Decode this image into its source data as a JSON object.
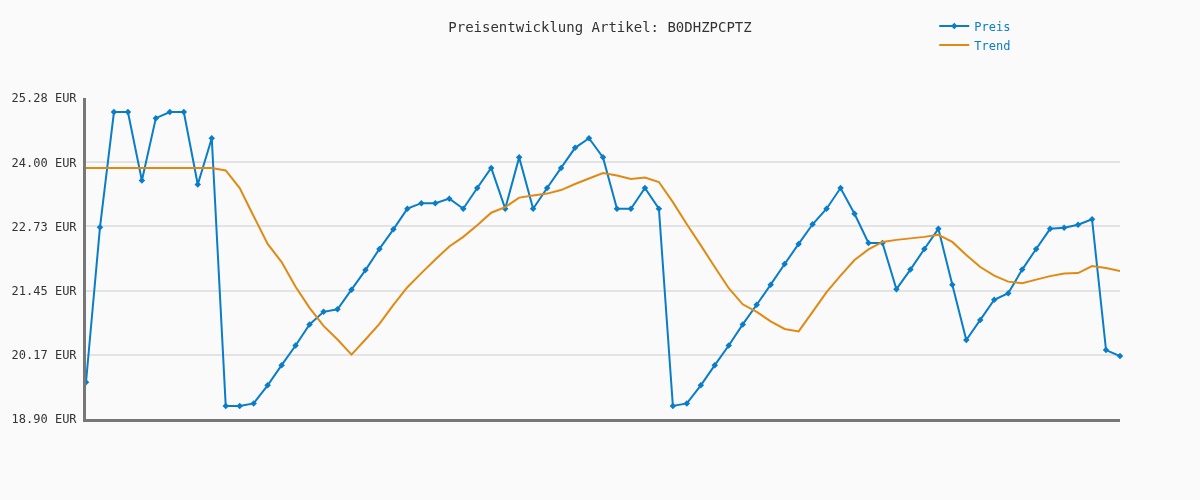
{
  "chart_data": {
    "type": "line",
    "title": "Preisentwicklung Artikel: B0DHZPCPTZ",
    "categories": [
      null,
      null,
      null,
      null,
      null,
      null,
      null,
      null,
      null,
      null,
      null,
      null,
      null,
      null,
      null,
      null,
      null,
      null,
      null,
      null,
      null,
      null,
      null,
      null,
      null,
      null,
      null,
      null,
      null,
      null,
      null,
      null,
      null,
      null,
      null,
      null,
      null,
      null,
      null,
      null,
      null,
      null,
      null,
      null,
      null,
      null,
      null,
      null,
      null,
      null,
      null,
      null,
      null,
      null,
      null,
      null,
      null,
      null,
      null,
      null,
      null,
      null,
      null,
      null,
      null,
      null,
      null,
      null,
      null,
      null,
      null,
      null,
      null,
      null,
      null
    ],
    "series": [
      {
        "name": "Preis",
        "color": "#0a7dc8",
        "marker": "diamond",
        "values": [
          19.63,
          22.71,
          25.0,
          25.0,
          23.64,
          24.88,
          25.0,
          25.0,
          23.56,
          24.48,
          19.16,
          19.16,
          19.21,
          19.57,
          19.97,
          20.36,
          20.78,
          21.03,
          21.08,
          21.47,
          21.86,
          22.28,
          22.67,
          23.08,
          23.19,
          23.19,
          23.28,
          23.08,
          23.49,
          23.89,
          23.08,
          24.1,
          23.08,
          23.49,
          23.89,
          24.29,
          24.48,
          24.1,
          23.08,
          23.08,
          23.49,
          23.08,
          19.16,
          19.21,
          19.57,
          19.97,
          20.36,
          20.78,
          21.17,
          21.57,
          21.98,
          22.38,
          22.77,
          23.08,
          23.49,
          22.98,
          22.4,
          22.4,
          21.48,
          21.87,
          22.28,
          22.68,
          21.57,
          20.47,
          20.87,
          21.27,
          21.4,
          21.87,
          22.28,
          22.68,
          22.7,
          22.76,
          22.87,
          20.27,
          20.15
        ]
      },
      {
        "name": "Trend",
        "color": "#e08a14",
        "marker": "none",
        "values": [
          23.89,
          23.89,
          23.89,
          23.89,
          23.89,
          23.89,
          23.89,
          23.89,
          23.89,
          23.89,
          23.84,
          23.49,
          22.93,
          22.38,
          22.02,
          21.53,
          21.11,
          20.75,
          20.48,
          20.18,
          20.48,
          20.79,
          21.17,
          21.52,
          21.8,
          22.07,
          22.33,
          22.52,
          22.75,
          23.0,
          23.11,
          23.3,
          23.34,
          23.38,
          23.45,
          23.57,
          23.68,
          23.79,
          23.74,
          23.67,
          23.7,
          23.61,
          23.21,
          22.77,
          22.35,
          21.92,
          21.5,
          21.18,
          21.03,
          20.84,
          20.69,
          20.64,
          21.03,
          21.42,
          21.75,
          22.06,
          22.27,
          22.42,
          22.46,
          22.49,
          22.52,
          22.56,
          22.42,
          22.16,
          21.92,
          21.75,
          21.63,
          21.6,
          21.67,
          21.74,
          21.79,
          21.8,
          21.94,
          21.9,
          21.84
        ]
      }
    ],
    "ylim": [
      18.9,
      25.28
    ],
    "yticks": [
      {
        "value": 18.9,
        "label": "18.90 EUR"
      },
      {
        "value": 20.17,
        "label": "20.17 EUR"
      },
      {
        "value": 21.45,
        "label": "21.45 EUR"
      },
      {
        "value": 22.73,
        "label": "22.73 EUR"
      },
      {
        "value": 24.0,
        "label": "24.00 EUR"
      },
      {
        "value": 25.28,
        "label": "25.28 EUR"
      }
    ],
    "grid": "y",
    "legend": "top right",
    "line_style": "solid",
    "tick_labels": "y"
  }
}
